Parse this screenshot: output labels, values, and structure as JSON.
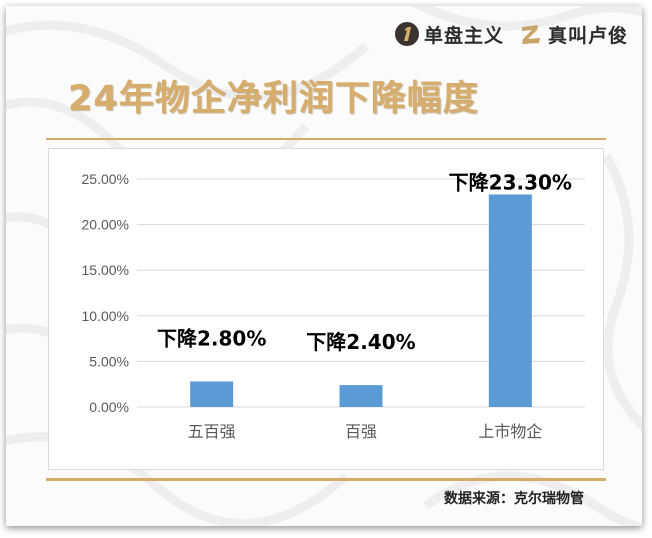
{
  "brand": {
    "logo1_text": "单盘主义",
    "logo2_text": "真叫卢俊"
  },
  "title": "24年物企净利润下降幅度",
  "source": "数据来源：克尔瑞物管",
  "colors": {
    "bar": "#5b9bd5",
    "gold": "#d7ad6c",
    "gold_rule": "#d5ab6b",
    "axis_text": "#595959",
    "grid": "#d9d9d9"
  },
  "chart_data": {
    "type": "bar",
    "categories": [
      "五百强",
      "百强",
      "上市物企"
    ],
    "values": [
      2.8,
      2.4,
      23.3
    ],
    "data_labels": [
      "下降2.80%",
      "下降2.40%",
      "下降23.30%"
    ],
    "ylim": [
      0,
      25
    ],
    "yticks": [
      "0.00%",
      "5.00%",
      "10.00%",
      "15.00%",
      "20.00%",
      "25.00%"
    ],
    "title": "",
    "xlabel": "",
    "ylabel": "",
    "grid": true,
    "legend": "none"
  }
}
